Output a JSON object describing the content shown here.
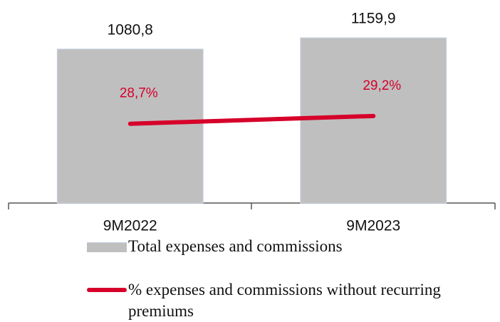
{
  "chart_data": {
    "type": "bar",
    "categories": [
      "9M2022",
      "9M2023"
    ],
    "series": [
      {
        "name": "Total expenses and commissions",
        "type": "bar",
        "color": "#bfbfbf",
        "values": [
          1080.8,
          1159.9
        ],
        "value_labels": [
          "1080,8",
          "1159,9"
        ]
      },
      {
        "name": "% expenses and commissions without recurring premiums",
        "type": "line",
        "axis": "y2",
        "color": "#d6002a",
        "values": [
          28.7,
          29.2
        ],
        "value_labels": [
          "28,7%",
          "29,2%"
        ]
      }
    ],
    "ylim": [
      0,
      1200
    ],
    "y2lim": [
      23.6,
      34.6
    ],
    "legend": "bottom"
  }
}
